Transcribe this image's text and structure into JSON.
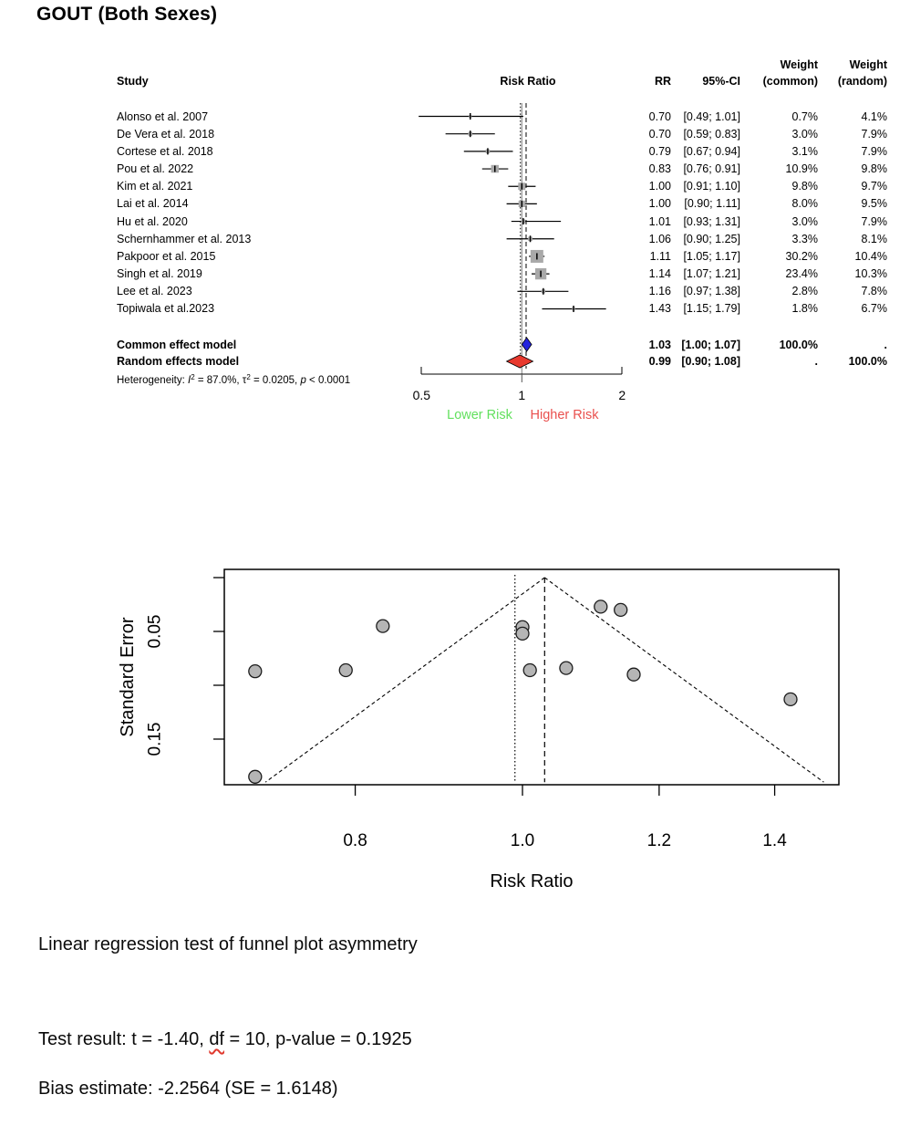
{
  "title": "GOUT (Both Sexes)",
  "colors": {
    "lower_risk_green": "#62e05e",
    "higher_risk_red": "#e9504e",
    "common_diamond_blue": "#2323dd",
    "random_diamond_red": "#e8392e",
    "square_gray": "#a9a9a9",
    "funnel_point_fill": "#b5b5b5",
    "squiggle_red": "#e0392e",
    "ref_line_gray": "#8a8a8a"
  },
  "forest_header": {
    "study": "Study",
    "risk_ratio": "Risk Ratio",
    "rr": "RR",
    "ci": "95%-CI",
    "weight_common_1": "Weight",
    "weight_common_2": "(common)",
    "weight_random_1": "Weight",
    "weight_random_2": "(random)"
  },
  "chart_data": [
    {
      "type": "forest",
      "x_scale": "log",
      "axis_tick_values": [
        0.5,
        1,
        2
      ],
      "axis_tick_labels": [
        "0.5",
        "1",
        "2"
      ],
      "lower_label": "Lower Risk",
      "higher_label": "Higher Risk",
      "ref_line": 1.0,
      "dotted_line_rr": 0.99,
      "dashed_line_rr": 1.03,
      "studies": [
        {
          "study": "Alonso et al. 2007",
          "rr": 0.7,
          "lo": 0.49,
          "hi": 1.01,
          "rr_text": "0.70",
          "ci_text": "[0.49; 1.01]",
          "w_common": 0.7,
          "w_random": 4.1,
          "w_common_text": "0.7%",
          "w_random_text": "4.1%"
        },
        {
          "study": "De Vera et al. 2018",
          "rr": 0.7,
          "lo": 0.59,
          "hi": 0.83,
          "rr_text": "0.70",
          "ci_text": "[0.59; 0.83]",
          "w_common": 3.0,
          "w_random": 7.9,
          "w_common_text": "3.0%",
          "w_random_text": "7.9%"
        },
        {
          "study": "Cortese et al. 2018",
          "rr": 0.79,
          "lo": 0.67,
          "hi": 0.94,
          "rr_text": "0.79",
          "ci_text": "[0.67; 0.94]",
          "w_common": 3.1,
          "w_random": 7.9,
          "w_common_text": "3.1%",
          "w_random_text": "7.9%"
        },
        {
          "study": "Pou et al. 2022",
          "rr": 0.83,
          "lo": 0.76,
          "hi": 0.91,
          "rr_text": "0.83",
          "ci_text": "[0.76; 0.91]",
          "w_common": 10.9,
          "w_random": 9.8,
          "w_common_text": "10.9%",
          "w_random_text": "9.8%"
        },
        {
          "study": "Kim et al. 2021",
          "rr": 1.0,
          "lo": 0.91,
          "hi": 1.1,
          "rr_text": "1.00",
          "ci_text": "[0.91; 1.10]",
          "w_common": 9.8,
          "w_random": 9.7,
          "w_common_text": "9.8%",
          "w_random_text": "9.7%"
        },
        {
          "study": "Lai et al. 2014",
          "rr": 1.0,
          "lo": 0.9,
          "hi": 1.11,
          "rr_text": "1.00",
          "ci_text": "[0.90; 1.11]",
          "w_common": 8.0,
          "w_random": 9.5,
          "w_common_text": "8.0%",
          "w_random_text": "9.5%"
        },
        {
          "study": "Hu et al. 2020",
          "rr": 1.01,
          "lo": 0.93,
          "hi": 1.31,
          "rr_text": "1.01",
          "ci_text": "[0.93; 1.31]",
          "w_common": 3.0,
          "w_random": 7.9,
          "w_common_text": "3.0%",
          "w_random_text": "7.9%"
        },
        {
          "study": "Schernhammer et al. 2013",
          "rr": 1.06,
          "lo": 0.9,
          "hi": 1.25,
          "rr_text": "1.06",
          "ci_text": "[0.90; 1.25]",
          "w_common": 3.3,
          "w_random": 8.1,
          "w_common_text": "3.3%",
          "w_random_text": "8.1%"
        },
        {
          "study": "Pakpoor et al. 2015",
          "rr": 1.11,
          "lo": 1.05,
          "hi": 1.17,
          "rr_text": "1.11",
          "ci_text": "[1.05; 1.17]",
          "w_common": 30.2,
          "w_random": 10.4,
          "w_common_text": "30.2%",
          "w_random_text": "10.4%"
        },
        {
          "study": "Singh et al. 2019",
          "rr": 1.14,
          "lo": 1.07,
          "hi": 1.21,
          "rr_text": "1.14",
          "ci_text": "[1.07; 1.21]",
          "w_common": 23.4,
          "w_random": 10.3,
          "w_common_text": "23.4%",
          "w_random_text": "10.3%"
        },
        {
          "study": "Lee et al. 2023",
          "rr": 1.16,
          "lo": 0.97,
          "hi": 1.38,
          "rr_text": "1.16",
          "ci_text": "[0.97; 1.38]",
          "w_common": 2.8,
          "w_random": 7.8,
          "w_common_text": "2.8%",
          "w_random_text": "7.8%"
        },
        {
          "study": "Topiwala et al.2023",
          "rr": 1.43,
          "lo": 1.15,
          "hi": 1.79,
          "rr_text": "1.43",
          "ci_text": "[1.15; 1.79]",
          "w_common": 1.8,
          "w_random": 6.7,
          "w_common_text": "1.8%",
          "w_random_text": "6.7%"
        }
      ],
      "common_effect": {
        "label": "Common effect model",
        "rr": 1.03,
        "lo": 1.0,
        "hi": 1.07,
        "rr_text": "1.03",
        "ci_text": "[1.00; 1.07]",
        "w_common_text": "100.0%",
        "w_random_text": "."
      },
      "random_effects": {
        "label": "Random effects model",
        "rr": 0.99,
        "lo": 0.9,
        "hi": 1.08,
        "rr_text": "0.99",
        "ci_text": "[0.90; 1.08]",
        "w_common_text": ".",
        "w_random_text": "100.0%"
      },
      "heterogeneity_segments": [
        {
          "t": "Heterogeneity: "
        },
        {
          "t": "I",
          "i": true
        },
        {
          "t": "2",
          "sup": true
        },
        {
          "t": " = 87.0%, "
        },
        {
          "t": "τ"
        },
        {
          "t": "2",
          "sup": true
        },
        {
          "t": " = 0.0205, "
        },
        {
          "t": "p",
          "i": true
        },
        {
          "t": " < 0.0001"
        }
      ]
    },
    {
      "type": "scatter",
      "xlabel": "Risk Ratio",
      "ylabel": "Standard Error",
      "x_scale": "log",
      "y_inverted": true,
      "x_tick_values": [
        0.8,
        1.0,
        1.2,
        1.4
      ],
      "x_tick_labels": [
        "0.8",
        "1.0",
        "1.2",
        "1.4"
      ],
      "y_tick_values": [
        0,
        0.05,
        0.1,
        0.15
      ],
      "y_tick_labels": [
        "",
        "0.05",
        "",
        "0.15"
      ],
      "xlim": [
        0.67,
        1.53
      ],
      "ylim_se": [
        0,
        0.192
      ],
      "apex_rr": 1.03,
      "dotted_line_rr": 0.99,
      "dashed_line_rr": 1.03,
      "points": [
        {
          "study": "Alonso et al. 2007",
          "rr": 0.7,
          "se": 0.185
        },
        {
          "study": "De Vera et al. 2018",
          "rr": 0.7,
          "se": 0.087
        },
        {
          "study": "Cortese et al. 2018",
          "rr": 0.79,
          "se": 0.086
        },
        {
          "study": "Pou et al. 2022",
          "rr": 0.83,
          "se": 0.045
        },
        {
          "study": "Kim et al. 2021",
          "rr": 1.0,
          "se": 0.046
        },
        {
          "study": "Lai et al. 2014",
          "rr": 1.0,
          "se": 0.052
        },
        {
          "study": "Hu et al. 2020",
          "rr": 1.01,
          "se": 0.086
        },
        {
          "study": "Schernhammer et al. 2013",
          "rr": 1.06,
          "se": 0.084
        },
        {
          "study": "Pakpoor et al. 2015",
          "rr": 1.11,
          "se": 0.027
        },
        {
          "study": "Singh et al. 2019",
          "rr": 1.14,
          "se": 0.03
        },
        {
          "study": "Lee et al. 2023",
          "rr": 1.16,
          "se": 0.09
        },
        {
          "study": "Topiwala et al.2023",
          "rr": 1.43,
          "se": 0.113
        }
      ]
    }
  ],
  "asymmetry": {
    "heading": "Linear regression test of funnel plot asymmetry",
    "test_segments": [
      {
        "t": "Test result: t = -1.40, "
      },
      {
        "t": "df",
        "squiggle": true
      },
      {
        "t": " = 10, p-value = 0.1925"
      }
    ],
    "bias_text": "Bias estimate: -2.2564 (SE = 1.6148)"
  }
}
